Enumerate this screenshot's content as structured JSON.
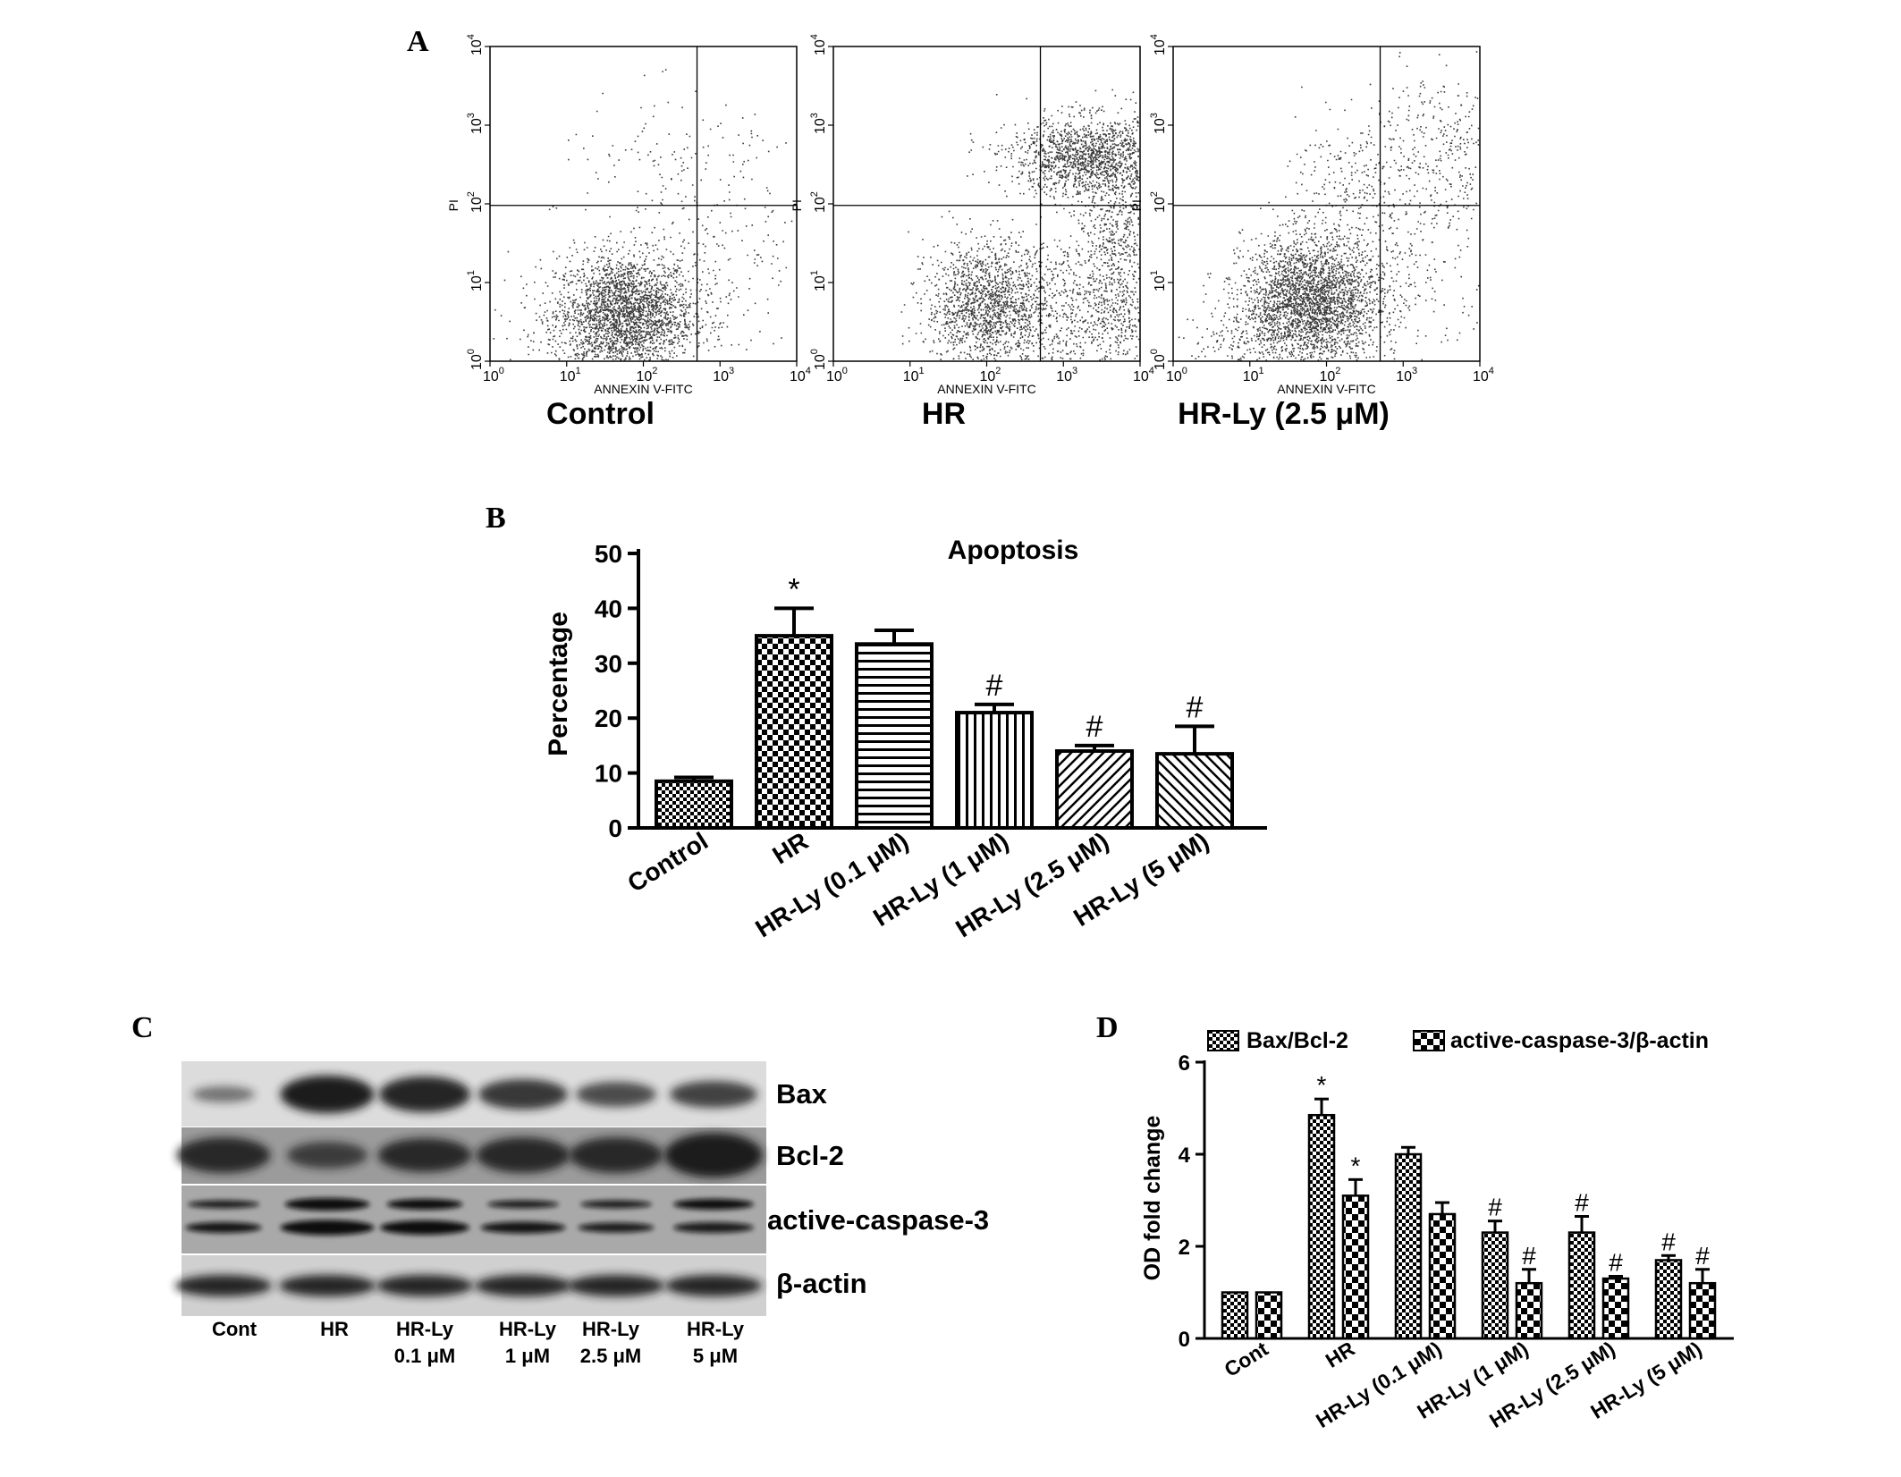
{
  "panels": {
    "A": "A",
    "B": "B",
    "C": "C",
    "D": "D"
  },
  "flow": {
    "xlabel": "ANNEXIN V-FITC",
    "ylabel": "PI",
    "ticks": [
      "10",
      "10",
      "10",
      "10",
      "10"
    ],
    "exps": [
      "0",
      "1",
      "2",
      "3",
      "4"
    ],
    "plots": [
      {
        "name": "Control",
        "label": "Control"
      },
      {
        "name": "HR",
        "label": "HR"
      },
      {
        "name": "HR-Ly",
        "label": "HR-Ly (2.5 μM)"
      }
    ]
  },
  "chart_data": [
    {
      "type": "bar",
      "title": "Apoptosis",
      "ylabel": "Percentage",
      "ylim": [
        0,
        50
      ],
      "yticks": [
        "0",
        "10",
        "20",
        "30",
        "40",
        "50"
      ],
      "categories": [
        "Control",
        "HR",
        "HR-Ly (0.1 μM)",
        "HR-Ly (1 μM)",
        "HR-Ly (2.5 μM)",
        "HR-Ly (5 μM)"
      ],
      "values": [
        8.5,
        35,
        33.5,
        21,
        14,
        13.5
      ],
      "errors": [
        0.7,
        5,
        2.5,
        1.5,
        1,
        5
      ],
      "annotations": [
        "",
        "*",
        "",
        "#",
        "#",
        "#"
      ]
    },
    {
      "type": "bar",
      "ylabel": "OD fold change",
      "ylim": [
        0,
        6
      ],
      "yticks": [
        "0",
        "2",
        "4",
        "6"
      ],
      "categories": [
        "Cont",
        "HR",
        "HR-Ly (0.1 μM)",
        "HR-Ly (1 μM)",
        "HR-Ly (2.5 μM)",
        "HR-Ly (5 μM)"
      ],
      "legend_position": "top",
      "series": [
        {
          "name": "Bax/Bcl-2",
          "values": [
            1,
            4.85,
            4,
            2.3,
            2.3,
            1.7
          ],
          "errors": [
            0,
            0.35,
            0.15,
            0.25,
            0.35,
            0.1
          ],
          "annotations": [
            "",
            "*",
            "",
            "#",
            "#",
            "#"
          ]
        },
        {
          "name": "active-caspase-3/β-actin",
          "values": [
            1,
            3.1,
            2.7,
            1.2,
            1.3,
            1.2
          ],
          "errors": [
            0,
            0.35,
            0.25,
            0.3,
            0.05,
            0.3
          ],
          "annotations": [
            "",
            "*",
            "",
            "#",
            "#",
            "#"
          ]
        }
      ]
    }
  ],
  "blot": {
    "rows": [
      "Bax",
      "Bcl-2",
      "active-caspase-3",
      "β-actin"
    ],
    "lanes": [
      {
        "l1": "Cont",
        "l2": ""
      },
      {
        "l1": "HR",
        "l2": ""
      },
      {
        "l1": "HR-Ly",
        "l2": "0.1 μM"
      },
      {
        "l1": "HR-Ly",
        "l2": "1 μM"
      },
      {
        "l1": "HR-Ly",
        "l2": "2.5 μM"
      },
      {
        "l1": "HR-Ly",
        "l2": "5 μM"
      }
    ]
  }
}
